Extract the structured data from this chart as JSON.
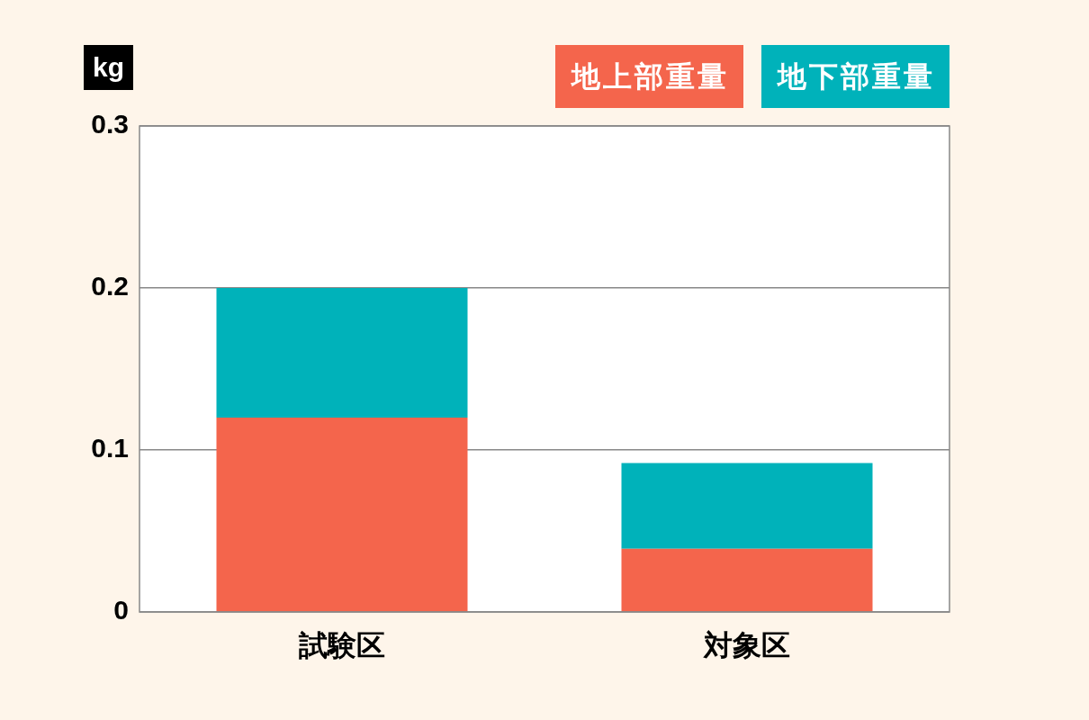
{
  "chart_data": {
    "type": "bar",
    "ylabel": "kg",
    "categories": [
      "試験区",
      "対象区"
    ],
    "stacked": true,
    "series": [
      {
        "name": "地上部重量",
        "color": "#f4654c",
        "values": [
          0.12,
          0.039
        ]
      },
      {
        "name": "地下部重量",
        "color": "#00b2ba",
        "values": [
          0.08,
          0.053
        ]
      }
    ],
    "ylim": [
      0,
      0.3
    ],
    "yticks": [
      0,
      0.1,
      0.2,
      0.3
    ],
    "grid": "y",
    "legend": "top right"
  }
}
